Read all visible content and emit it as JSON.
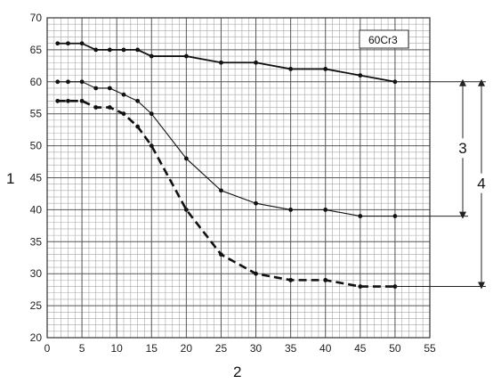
{
  "chart_data": {
    "type": "line",
    "title": "",
    "xlabel": "2",
    "ylabel": "1",
    "xlim": [
      0,
      55
    ],
    "ylim": [
      20,
      70
    ],
    "x_ticks": [
      0,
      5,
      10,
      15,
      20,
      25,
      30,
      35,
      40,
      45,
      50,
      55
    ],
    "y_ticks": [
      20,
      25,
      30,
      35,
      40,
      45,
      50,
      55,
      60,
      65,
      70
    ],
    "grid": true,
    "legend": {
      "label": "60Cr3",
      "placement": "top-right"
    },
    "series": [
      {
        "style": "solid-thick",
        "x": [
          1.5,
          3,
          5,
          7,
          9,
          11,
          13,
          15,
          20,
          25,
          30,
          35,
          40,
          45,
          50
        ],
        "y": [
          66,
          66,
          66,
          65,
          65,
          65,
          65,
          64,
          64,
          63,
          63,
          62,
          62,
          61,
          60
        ]
      },
      {
        "style": "solid-thin",
        "x": [
          1.5,
          3,
          5,
          7,
          9,
          11,
          13,
          15,
          20,
          25,
          30,
          35,
          40,
          45,
          50
        ],
        "y": [
          60,
          60,
          60,
          59,
          59,
          58,
          57,
          55,
          48,
          43,
          41,
          40,
          40,
          39,
          39
        ]
      },
      {
        "style": "dashed",
        "x": [
          1.5,
          3,
          5,
          7,
          9,
          11,
          13,
          15,
          20,
          25,
          30,
          35,
          40,
          45,
          50
        ],
        "y": [
          57,
          57,
          57,
          56,
          56,
          55,
          53,
          50,
          40,
          33,
          30,
          29,
          29,
          28,
          28
        ]
      }
    ],
    "annotations": [
      {
        "label": "3",
        "from_y": 60,
        "to_y": 39,
        "meaning": "range between upper solid and thin curves at x=50"
      },
      {
        "label": "4",
        "from_y": 60,
        "to_y": 28,
        "meaning": "range between upper solid and dashed curves at x=50"
      }
    ]
  }
}
